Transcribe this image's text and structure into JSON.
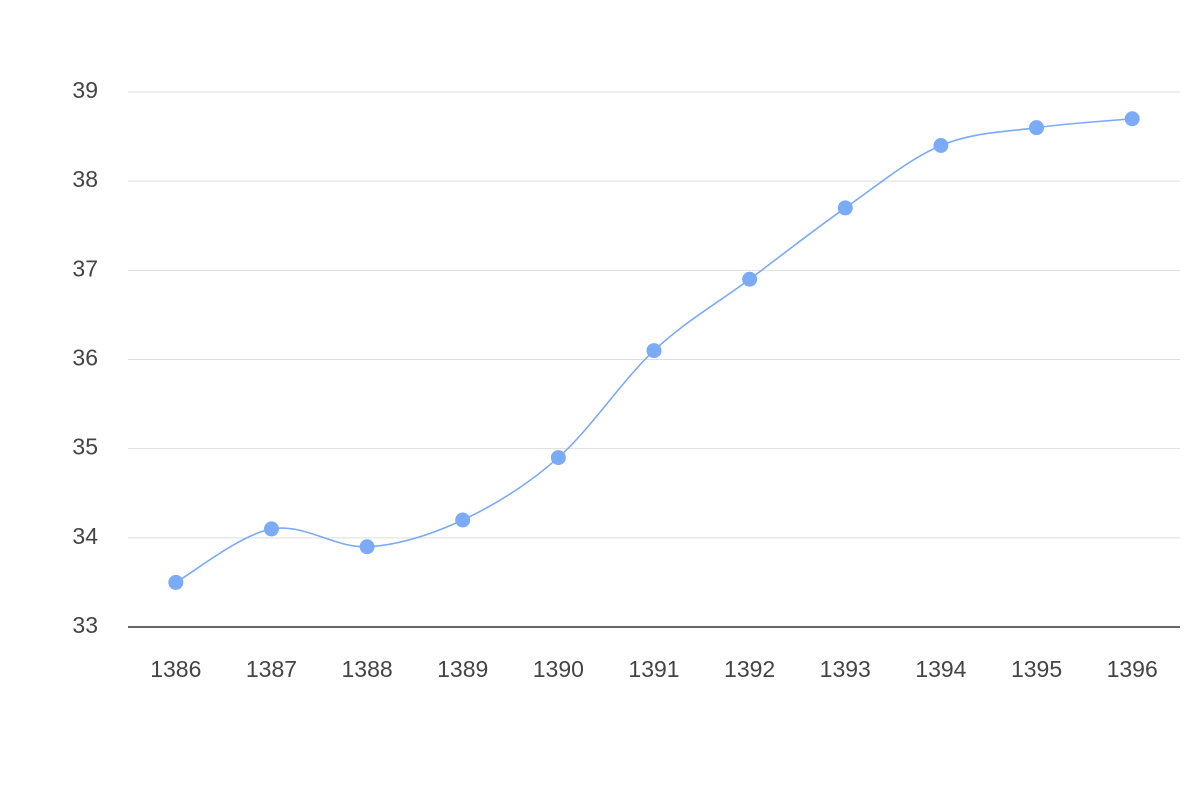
{
  "chart_data": {
    "type": "line",
    "categories": [
      "1386",
      "1387",
      "1388",
      "1389",
      "1390",
      "1391",
      "1392",
      "1393",
      "1394",
      "1395",
      "1396"
    ],
    "series": [
      {
        "color": "#7baaf7",
        "values": [
          33.5,
          34.1,
          33.9,
          34.2,
          34.9,
          36.1,
          36.9,
          37.7,
          38.4,
          38.6,
          38.7
        ]
      }
    ],
    "ylim": [
      33,
      39
    ],
    "yticks": [
      33,
      34,
      35,
      36,
      37,
      38,
      39
    ],
    "grid": true
  }
}
